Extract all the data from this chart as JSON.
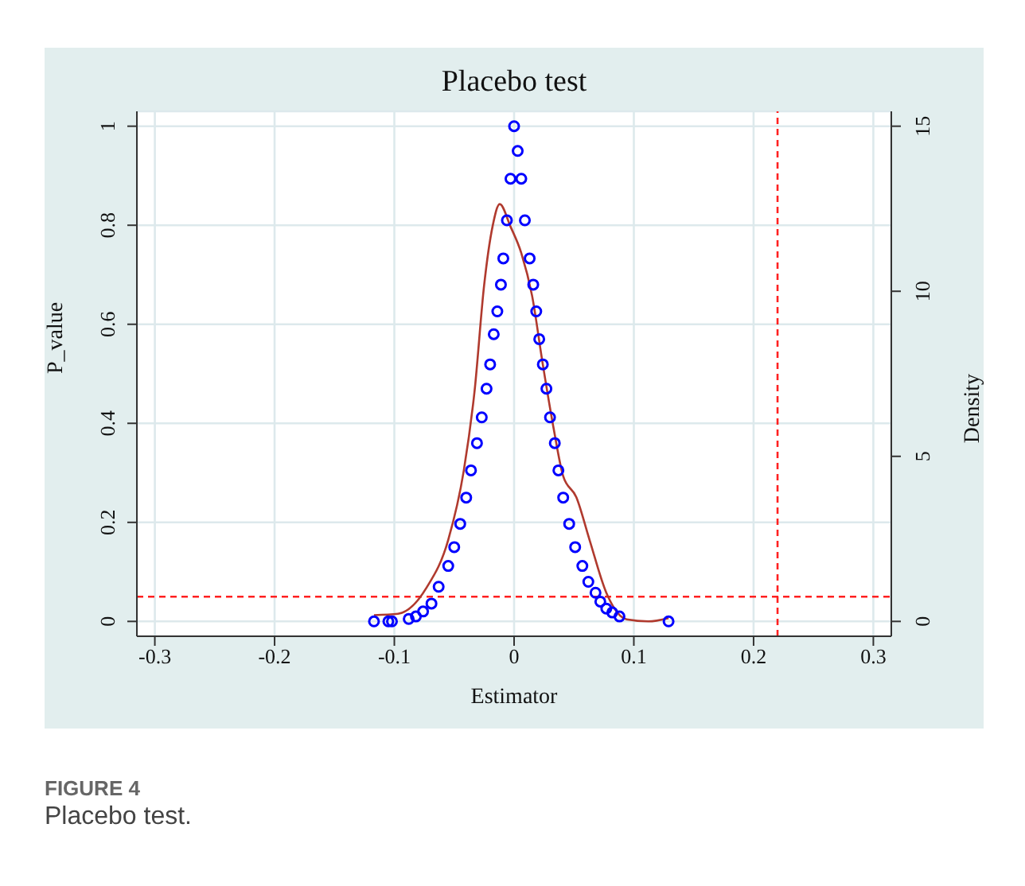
{
  "chart_data": {
    "type": "scatter",
    "title": "Placebo test",
    "xlabel": "Estimator",
    "ylabel": "P_value",
    "y2label": "Density",
    "annotations": [
      "FIGURE 4",
      "Placebo test."
    ],
    "xlim": [
      -0.315,
      0.315
    ],
    "xticks": [
      -0.3,
      -0.2,
      -0.1,
      0,
      0.1,
      0.2,
      0.3
    ],
    "ylim": [
      -0.03,
      1.03
    ],
    "yticks": [
      0,
      0.2,
      0.4,
      0.6,
      0.8,
      1
    ],
    "y2lim": [
      -0.45,
      15.45
    ],
    "y2ticks": [
      0,
      5,
      10,
      15
    ],
    "grid": true,
    "legend": false,
    "ref_lines": [
      {
        "axis": "y",
        "value": 0.05,
        "color": "#ff2020",
        "line_style": "dashed"
      },
      {
        "axis": "x",
        "value": 0.22,
        "color": "#ff2020",
        "line_style": "dashed"
      }
    ],
    "series": [
      {
        "marker": "circle",
        "color": "#0000ff",
        "x": [
          -0.117,
          -0.105,
          -0.102,
          -0.088,
          -0.082,
          -0.076,
          -0.069,
          -0.063,
          -0.055,
          -0.05,
          -0.045,
          -0.04,
          -0.036,
          -0.031,
          -0.027,
          -0.023,
          -0.02,
          -0.017,
          -0.014,
          -0.011,
          -0.009,
          -0.006,
          -0.003,
          0,
          0.003,
          0.006,
          0.009,
          0.013,
          0.016,
          0.0185,
          0.021,
          0.024,
          0.027,
          0.03,
          0.034,
          0.037,
          0.041,
          0.046,
          0.051,
          0.057,
          0.062,
          0.068,
          0.072,
          0.077,
          0.082,
          0.088,
          0.129
        ],
        "values": [
          0,
          0,
          0,
          0.005,
          0.01,
          0.02,
          0.036,
          0.07,
          0.112,
          0.15,
          0.197,
          0.25,
          0.305,
          0.36,
          0.412,
          0.47,
          0.519,
          0.58,
          0.626,
          0.68,
          0.733,
          0.81,
          0.894,
          1,
          0.95,
          0.894,
          0.81,
          0.733,
          0.68,
          0.626,
          0.57,
          0.519,
          0.47,
          0.412,
          0.36,
          0.305,
          0.25,
          0.197,
          0.15,
          0.112,
          0.08,
          0.058,
          0.04,
          0.026,
          0.018,
          0.01,
          0
        ]
      },
      {
        "type": "line",
        "axis": "y2",
        "marker": "none",
        "line_style": "solid",
        "color": "#b03a2e",
        "x": [
          -0.117,
          -0.097,
          -0.073,
          -0.055,
          -0.042,
          -0.033,
          -0.025,
          -0.018,
          -0.012,
          -0.003,
          0.006,
          0.015,
          0.024,
          0.033,
          0.041,
          0.052,
          0.063,
          0.077,
          0.094,
          0.112,
          0.129
        ],
        "values": [
          0.19,
          0.23,
          1.03,
          2.47,
          4.57,
          6.98,
          10.19,
          11.96,
          12.64,
          11.96,
          11.16,
          9.87,
          7.78,
          5.85,
          4.4,
          3.76,
          2.47,
          0.87,
          0.06,
          0,
          0.1
        ]
      }
    ]
  }
}
